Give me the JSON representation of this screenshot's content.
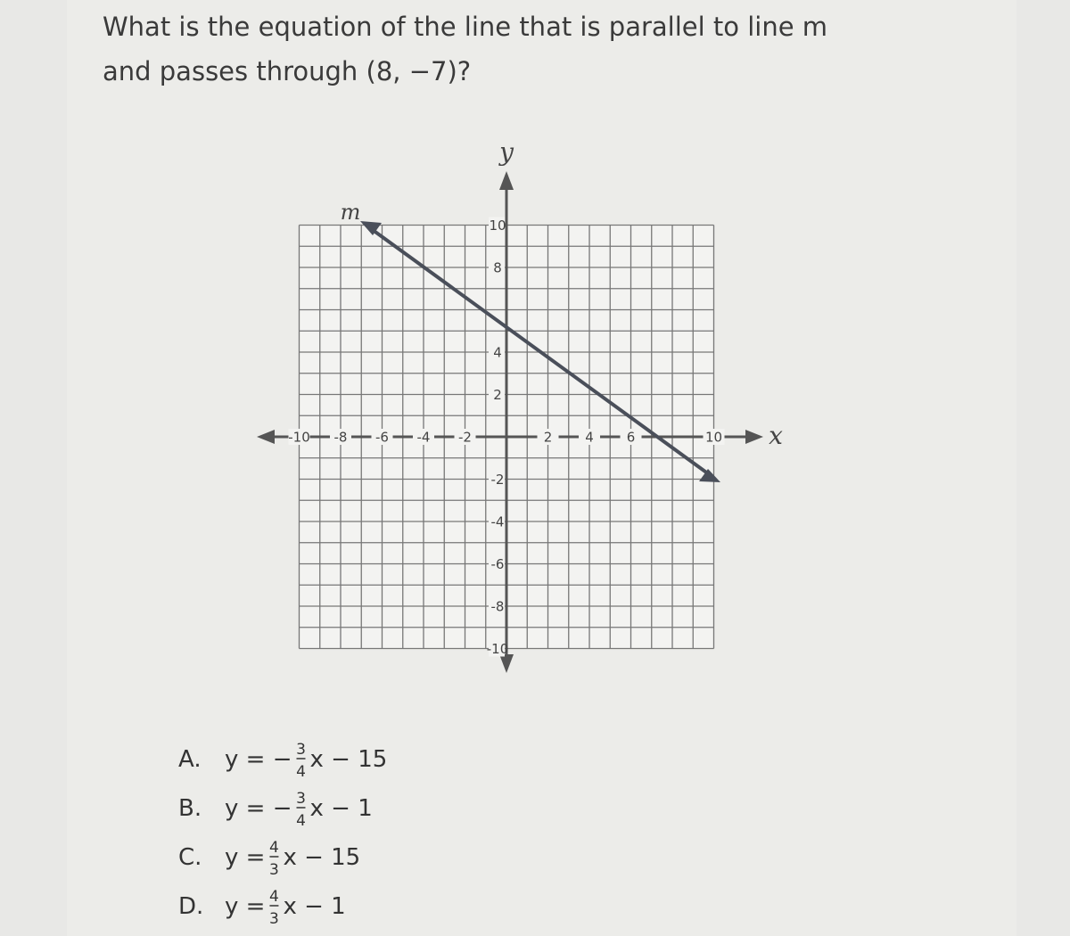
{
  "question": {
    "lines": [
      "What is the equation of the line that is parallel to line m",
      "and passes through (8, −7)?"
    ]
  },
  "graph": {
    "y_label": "y",
    "x_label": "x",
    "line_label": "m",
    "x_tick_labels": [
      "-10",
      "-8",
      "-6",
      "-4",
      "-2",
      "2",
      "4",
      "6",
      "10"
    ],
    "y_tick_labels": [
      "10",
      "8",
      "4",
      "2",
      "-2",
      "-4",
      "-6",
      "-8",
      "-10"
    ]
  },
  "options": [
    {
      "letter": "A.",
      "lhs": "y = −",
      "num": "3",
      "den": "4",
      "rhs": "x − 15"
    },
    {
      "letter": "B.",
      "lhs": "y = −",
      "num": "3",
      "den": "4",
      "rhs": "x − 1"
    },
    {
      "letter": "C.",
      "lhs": "y =",
      "num": "4",
      "den": "3",
      "rhs": "x − 15"
    },
    {
      "letter": "D.",
      "lhs": "y =",
      "num": "4",
      "den": "3",
      "rhs": "x − 1"
    }
  ]
}
